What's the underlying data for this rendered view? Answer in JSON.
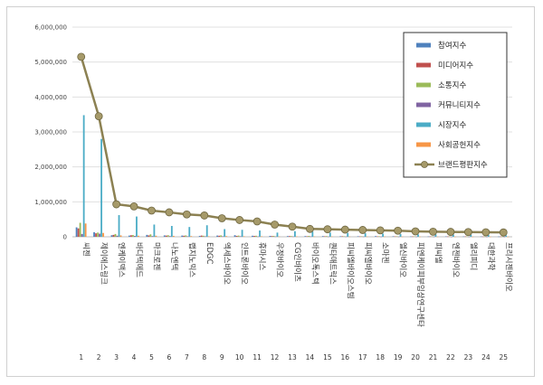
{
  "chart_data": {
    "type": "bar",
    "y_axis": {
      "min": 0,
      "max": 6000000,
      "step": 1000000,
      "tick_labels": [
        "0",
        "1,000,000",
        "2,000,000",
        "3,000,000",
        "4,000,000",
        "5,000,000",
        "6,000,000"
      ]
    },
    "grid": true,
    "legend_position": "top-right",
    "categories": [
      {
        "num": "1",
        "name": "씨젠"
      },
      {
        "num": "2",
        "name": "제이에스링크"
      },
      {
        "num": "3",
        "name": "엔케이맥스"
      },
      {
        "num": "4",
        "name": "바디텍메드"
      },
      {
        "num": "5",
        "name": "마크로젠"
      },
      {
        "num": "6",
        "name": "나노엔텍"
      },
      {
        "num": "7",
        "name": "랩지노믹스"
      },
      {
        "num": "8",
        "name": "EDGC"
      },
      {
        "num": "9",
        "name": "엑세스바이오"
      },
      {
        "num": "10",
        "name": "인트론바이오"
      },
      {
        "num": "11",
        "name": "휴마시스"
      },
      {
        "num": "12",
        "name": "우정바이오"
      },
      {
        "num": "13",
        "name": "CG인바이츠"
      },
      {
        "num": "14",
        "name": "바이오톡스텍"
      },
      {
        "num": "15",
        "name": "퀀타매트릭스"
      },
      {
        "num": "16",
        "name": "피씨엘바이오스템"
      },
      {
        "num": "17",
        "name": "피씨엘바이오"
      },
      {
        "num": "18",
        "name": "소마젠"
      },
      {
        "num": "19",
        "name": "엘신바이오"
      },
      {
        "num": "20",
        "name": "피엔케이피부임상연구센타"
      },
      {
        "num": "21",
        "name": "피씨엘"
      },
      {
        "num": "22",
        "name": "엔젠바이오"
      },
      {
        "num": "23",
        "name": "엘리피디"
      },
      {
        "num": "24",
        "name": "대한과학"
      },
      {
        "num": "25",
        "name": "프리시젠바이오"
      }
    ],
    "series": [
      {
        "name": "참여지수",
        "color": "#4f81bd",
        "type": "bar",
        "values": [
          270000,
          130000,
          45000,
          35000,
          55000,
          40000,
          35000,
          25000,
          35000,
          45000,
          30000,
          25000,
          20000,
          20000,
          20000,
          15000,
          15000,
          20000,
          15000,
          10000,
          10000,
          12000,
          10000,
          10000,
          8000
        ]
      },
      {
        "name": "미디어지수",
        "color": "#c0504d",
        "type": "bar",
        "values": [
          240000,
          100000,
          55000,
          45000,
          40000,
          35000,
          30000,
          35000,
          30000,
          25000,
          25000,
          20000,
          20000,
          15000,
          15000,
          15000,
          12000,
          12000,
          12000,
          10000,
          10000,
          10000,
          10000,
          8000,
          8000
        ]
      },
      {
        "name": "소통지수",
        "color": "#9bbb59",
        "type": "bar",
        "values": [
          400000,
          120000,
          80000,
          50000,
          70000,
          45000,
          40000,
          30000,
          40000,
          35000,
          30000,
          25000,
          20000,
          25000,
          20000,
          15000,
          15000,
          15000,
          15000,
          12000,
          10000,
          12000,
          10000,
          10000,
          10000
        ]
      },
      {
        "name": "커뮤니티지수",
        "color": "#8064a2",
        "type": "bar",
        "values": [
          80000,
          90000,
          30000,
          25000,
          20000,
          20000,
          15000,
          15000,
          15000,
          15000,
          10000,
          10000,
          10000,
          10000,
          8000,
          8000,
          8000,
          6000,
          6000,
          6000,
          5000,
          5000,
          5000,
          5000,
          4000
        ]
      },
      {
        "name": "시장지수",
        "color": "#4bacc6",
        "type": "bar",
        "values": [
          3480000,
          2800000,
          620000,
          580000,
          350000,
          310000,
          280000,
          330000,
          220000,
          200000,
          180000,
          120000,
          160000,
          150000,
          120000,
          110000,
          100000,
          90000,
          80000,
          70000,
          70000,
          60000,
          60000,
          50000,
          40000
        ]
      },
      {
        "name": "사회공헌지수",
        "color": "#f79646",
        "type": "bar",
        "values": [
          380000,
          110000,
          40000,
          30000,
          30000,
          25000,
          20000,
          15000,
          20000,
          15000,
          15000,
          10000,
          10000,
          10000,
          10000,
          8000,
          8000,
          8000,
          6000,
          6000,
          5000,
          5000,
          5000,
          5000,
          4000
        ]
      },
      {
        "name": "브랜드평판지수",
        "color": "#8c8152",
        "type": "line",
        "values": [
          5150000,
          3450000,
          930000,
          870000,
          750000,
          700000,
          640000,
          610000,
          530000,
          480000,
          440000,
          350000,
          290000,
          225000,
          215000,
          205000,
          195000,
          185000,
          175000,
          155000,
          145000,
          140000,
          135000,
          130000,
          125000
        ]
      }
    ]
  }
}
